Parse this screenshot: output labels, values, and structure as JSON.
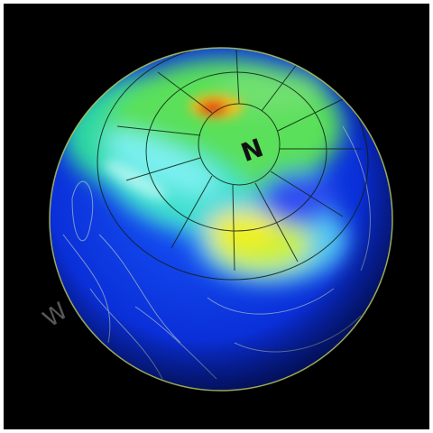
{
  "labels": {
    "pole": "N",
    "watermark": "W"
  }
}
